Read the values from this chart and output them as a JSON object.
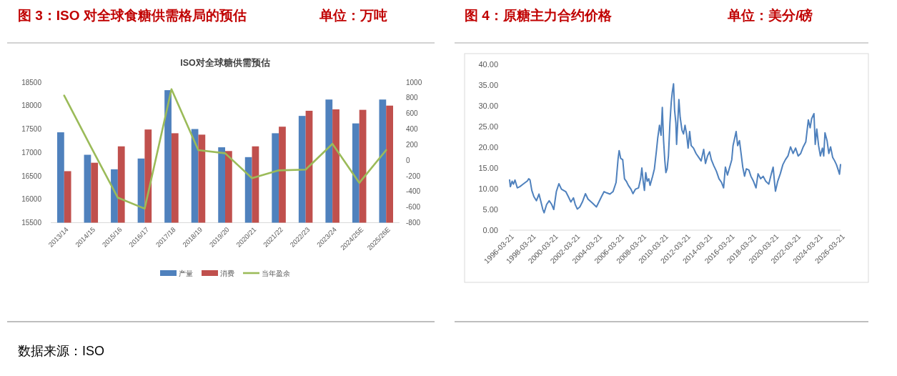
{
  "chart_data": [
    {
      "type": "bar",
      "title": "图 3：ISO 对全球食糖供需格局的预估",
      "subtitle": "ISO对全球糖供需预估",
      "annotations": [
        "单位：万吨",
        "数据来源：ISO"
      ],
      "categories": [
        "2013/14",
        "2014/15",
        "2015/16",
        "2016/17",
        "2017/18",
        "2018/19",
        "2019/20",
        "2020/21",
        "2021/22",
        "2022/23",
        "2023/24",
        "2024/25E",
        "2025/26E"
      ],
      "series": [
        {
          "name": "产量",
          "color": "#4f81bd",
          "values": [
            17430,
            16950,
            16640,
            16870,
            18330,
            17500,
            17110,
            16900,
            17410,
            17780,
            18130,
            17620,
            18130
          ]
        },
        {
          "name": "消费",
          "color": "#c0504d",
          "values": [
            16600,
            16780,
            17130,
            17490,
            17410,
            17380,
            17030,
            17130,
            17550,
            17890,
            17920,
            17910,
            18000
          ]
        },
        {
          "name": "当年盈余",
          "type": "line",
          "axis": "y2",
          "color": "#9bbb59",
          "values": [
            830,
            170,
            -480,
            -620,
            910,
            130,
            90,
            -230,
            -130,
            -120,
            210,
            -290,
            130
          ]
        }
      ],
      "ylim": [
        15500,
        18500
      ],
      "yticks": [
        15500,
        16000,
        16500,
        17000,
        17500,
        18000,
        18500
      ],
      "y2lim": [
        -800,
        1000
      ],
      "y2ticks": [
        -800,
        -600,
        -400,
        -200,
        0,
        200,
        400,
        600,
        800,
        1000
      ],
      "legend": "bottom"
    },
    {
      "type": "line",
      "title": "图 4：原糖主力合约价格",
      "annotations": [
        "单位：美分/磅"
      ],
      "x": [
        "1996-03-21",
        "1996-04-15",
        "1996-06-13",
        "1996-07-26",
        "1996-09-15",
        "1996-11-30",
        "1997-02-22",
        "1997-06-29",
        "1997-11-02",
        "1997-12-14",
        "1998-01-26",
        "1998-03-26",
        "1998-06-02",
        "1998-08-25",
        "1998-11-18",
        "1999-01-24",
        "1999-03-25",
        "1999-05-07",
        "1999-07-30",
        "1999-10-22",
        "2000-01-14",
        "2000-03-22",
        "2000-06-15",
        "2000-09-08",
        "2000-12-01",
        "2001-04-23",
        "2001-07-17",
        "2001-10-10",
        "2002-01-03",
        "2002-03-03",
        "2002-05-10",
        "2002-08-02",
        "2002-10-25",
        "2003-02-04",
        "2003-04-30",
        "2003-09-28",
        "2004-02-02",
        "2004-03-15",
        "2004-07-20",
        "2004-10-13",
        "2005-01-06",
        "2005-04-25",
        "2005-08-05",
        "2005-11-14",
        "2006-01-21",
        "2006-02-24",
        "2006-04-16",
        "2006-06-22",
        "2006-08-20",
        "2006-10-19",
        "2006-12-26",
        "2007-03-21",
        "2007-05-27",
        "2007-08-19",
        "2007-11-28",
        "2008-02-04",
        "2008-03-17",
        "2008-04-29",
        "2008-06-10",
        "2008-07-23",
        "2008-09-11",
        "2008-11-01",
        "2008-12-13",
        "2009-03-08",
        "2009-05-06",
        "2009-07-13",
        "2009-08-24",
        "2009-10-22",
        "2009-12-12",
        "2010-01-23",
        "2010-03-06",
        "2010-04-17",
        "2010-05-21",
        "2010-07-02",
        "2010-08-14",
        "2010-10-03",
        "2010-11-15",
        "2010-12-19",
        "2011-01-30",
        "2011-03-05",
        "2011-04-16",
        "2011-05-11",
        "2011-06-22",
        "2011-07-26",
        "2011-09-07",
        "2011-11-05",
        "2011-12-26",
        "2012-02-14",
        "2012-04-05",
        "2012-05-26",
        "2012-07-16",
        "2012-09-05",
        "2012-11-20",
        "2013-02-13",
        "2013-05-08",
        "2013-07-31",
        "2013-10-24",
        "2013-12-22",
        "2014-02-28",
        "2014-05-07",
        "2014-07-04",
        "2014-09-27",
        "2014-12-20",
        "2015-03-15",
        "2015-06-08",
        "2015-08-14",
        "2015-10-12",
        "2015-12-19",
        "2016-02-16",
        "2016-05-11",
        "2016-06-22",
        "2016-10-02",
        "2016-11-22",
        "2017-01-20",
        "2017-03-20",
        "2017-05-10",
        "2017-07-08",
        "2017-09-05",
        "2017-11-28",
        "2018-02-04",
        "2018-04-29",
        "2018-07-23",
        "2018-09-28",
        "2018-12-22",
        "2019-03-17",
        "2019-06-09",
        "2019-09-18",
        "2019-12-12",
        "2020-02-10",
        "2020-03-23",
        "2020-04-26",
        "2020-07-10",
        "2020-10-03",
        "2020-12-27",
        "2021-03-21",
        "2021-06-14",
        "2021-09-07",
        "2021-11-30",
        "2022-02-22",
        "2022-05-18",
        "2022-08-10",
        "2022-11-02",
        "2023-01-26",
        "2023-04-20",
        "2023-06-18",
        "2023-08-08",
        "2023-10-23",
        "2023-12-04",
        "2024-01-24",
        "2024-03-24",
        "2024-05-22",
        "2024-07-29",
        "2024-09-10",
        "2024-10-22",
        "2024-12-29",
        "2025-02-26",
        "2025-04-26",
        "2025-07-02",
        "2025-09-08",
        "2025-11-06",
        "2026-01-04",
        "2026-02-15",
        "2026-03-20"
      ],
      "series": [
        {
          "color": "#4f81bd",
          "values": [
            12.1,
            10.5,
            11.8,
            11.1,
            12.1,
            10.2,
            10.5,
            11.2,
            11.9,
            12.4,
            12.1,
            9.6,
            8.1,
            7.1,
            8.7,
            6.8,
            5.0,
            4.2,
            6.2,
            7.1,
            6.2,
            5.0,
            9.3,
            11.2,
            9.9,
            9.3,
            8.1,
            6.8,
            7.8,
            6.2,
            5.1,
            5.6,
            6.8,
            8.8,
            7.5,
            6.5,
            5.6,
            6.2,
            8.1,
            9.3,
            9.0,
            8.7,
            9.3,
            11.5,
            17.3,
            19.2,
            17.3,
            17.0,
            12.4,
            11.8,
            10.8,
            9.9,
            8.8,
            9.9,
            10.2,
            12.4,
            15.0,
            11.8,
            9.6,
            13.9,
            11.8,
            12.4,
            10.8,
            13.0,
            14.8,
            19.2,
            22.2,
            25.3,
            22.9,
            29.6,
            21.6,
            16.7,
            13.9,
            14.8,
            17.9,
            25.9,
            30.9,
            33.3,
            35.3,
            29.0,
            25.9,
            20.7,
            26.6,
            31.5,
            27.2,
            24.1,
            23.2,
            25.3,
            23.2,
            19.8,
            23.8,
            20.4,
            19.8,
            18.5,
            17.6,
            16.7,
            19.5,
            16.1,
            17.9,
            18.9,
            17.0,
            15.5,
            14.2,
            12.4,
            11.5,
            10.2,
            15.2,
            13.3,
            14.8,
            17.0,
            20.4,
            23.8,
            20.4,
            21.6,
            18.2,
            15.2,
            13.0,
            14.8,
            14.5,
            13.0,
            11.8,
            10.2,
            13.6,
            12.4,
            13.0,
            11.8,
            11.1,
            13.6,
            15.2,
            11.8,
            9.4,
            11.8,
            13.6,
            15.8,
            17.0,
            17.9,
            20.1,
            18.5,
            19.8,
            17.9,
            18.5,
            20.1,
            21.3,
            26.6,
            24.7,
            26.9,
            28.1,
            20.7,
            24.4,
            20.4,
            17.9,
            19.8,
            17.9,
            23.5,
            21.6,
            18.5,
            20.1,
            17.6,
            16.7,
            15.8,
            14.5,
            13.5,
            15.8
          ]
        }
      ],
      "xlim": [
        "1996-03-21",
        "2026-03-21"
      ],
      "xticks": [
        "1996-03-21",
        "1998-03-21",
        "2000-03-21",
        "2002-03-21",
        "2004-03-21",
        "2006-03-21",
        "2008-03-21",
        "2010-03-21",
        "2012-03-21",
        "2014-03-21",
        "2016-03-21",
        "2018-03-21",
        "2020-03-21",
        "2022-03-21",
        "2024-03-21",
        "2026-03-21"
      ],
      "ylim": [
        0,
        40
      ],
      "yticks": [
        {
          "value": 0,
          "label": "0.00"
        },
        {
          "value": 5,
          "label": "5.00"
        },
        {
          "value": 10,
          "label": "10.00"
        },
        {
          "value": 15,
          "label": "15.00"
        },
        {
          "value": 20,
          "label": "20.00"
        },
        {
          "value": 25,
          "label": "25.00"
        },
        {
          "value": 30,
          "label": "30.00"
        },
        {
          "value": 35,
          "label": "35.00"
        },
        {
          "value": 40,
          "label": "40.00"
        }
      ]
    }
  ]
}
